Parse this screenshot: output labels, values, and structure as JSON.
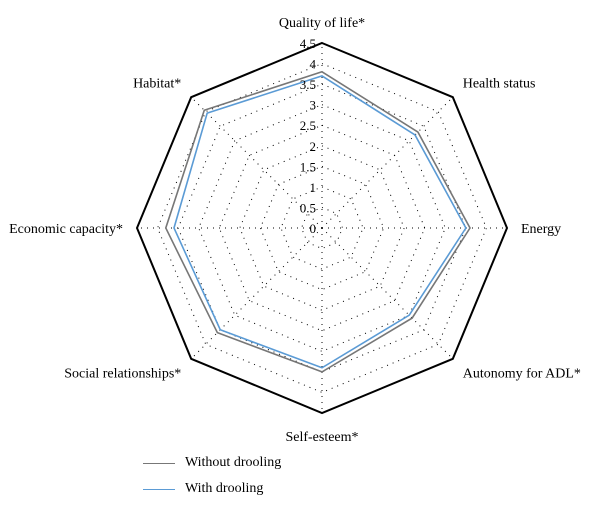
{
  "chart_data": {
    "type": "radar",
    "categories": [
      "Quality of life*",
      "Health status",
      "Energy",
      "Autonomy for ADL*",
      "Self-esteem*",
      "Social relationships*",
      "Economic capacity*",
      "Habitat*"
    ],
    "series": [
      {
        "name": "Without drooling",
        "color": "#777777",
        "values": [
          3.8,
          3.3,
          3.6,
          3.1,
          3.5,
          3.6,
          3.8,
          4.05
        ]
      },
      {
        "name": "With drooling",
        "color": "#5b9bd5",
        "values": [
          3.7,
          3.2,
          3.5,
          3.0,
          3.4,
          3.5,
          3.6,
          3.95
        ]
      }
    ],
    "rlim": [
      0,
      4.5
    ],
    "ticks": [
      "0",
      "0.5",
      "1",
      "1.5",
      "2",
      "2.5",
      "3",
      "3.5",
      "4",
      "4.5"
    ],
    "grid": true,
    "legend": "bottom"
  }
}
